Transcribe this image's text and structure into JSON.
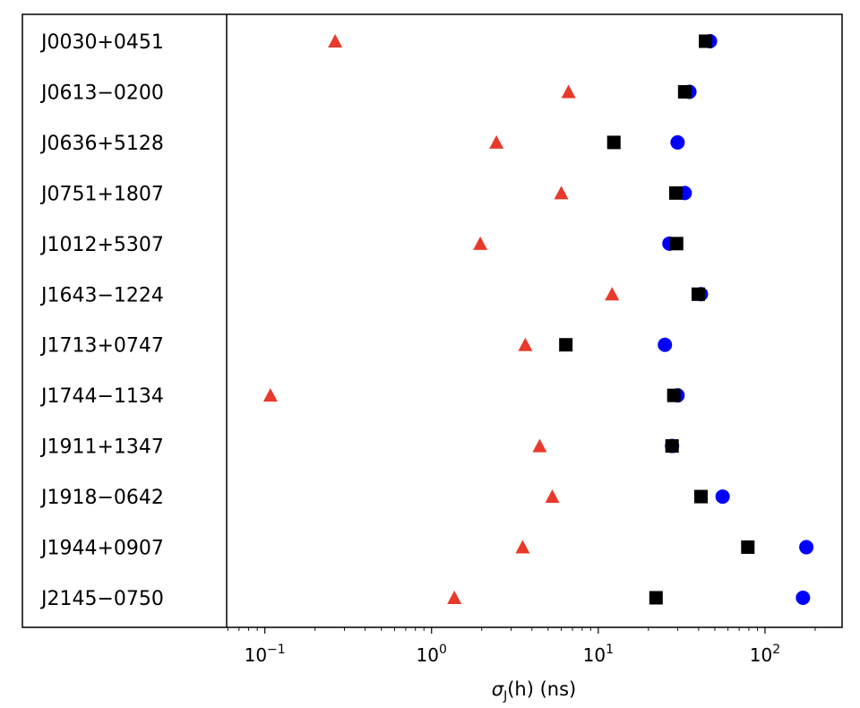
{
  "chart_data": {
    "type": "scatter",
    "title": "",
    "xlabel_main": "σ",
    "xlabel_sub": "J",
    "xlabel_rest": "(h) (ns)",
    "xscale": "log",
    "xlim": [
      0.059,
      290
    ],
    "xticks": [
      {
        "value": 0.1,
        "base": "10",
        "exp": "−1"
      },
      {
        "value": 1,
        "base": "10",
        "exp": "0"
      },
      {
        "value": 10,
        "base": "10",
        "exp": "1"
      },
      {
        "value": 100,
        "base": "10",
        "exp": "2"
      }
    ],
    "grid": false,
    "categories": [
      "J0030+0451",
      "J0613−0200",
      "J0636+5128",
      "J0751+1807",
      "J1012+5307",
      "J1643−1224",
      "J1713+0747",
      "J1744−1134",
      "J1911+1347",
      "J1918−0642",
      "J1944+0907",
      "J2145−0750"
    ],
    "series": [
      {
        "marker": "circle",
        "color": "#0000ff",
        "values": [
          46.8,
          35.2,
          29.9,
          33.0,
          26.7,
          41.3,
          25.1,
          29.9,
          27.7,
          55.7,
          177,
          169
        ]
      },
      {
        "marker": "square",
        "color": "#000000",
        "values": [
          44,
          33,
          12.4,
          29.2,
          29.5,
          39.8,
          6.39,
          28.4,
          27.7,
          41.3,
          78.9,
          22.2
        ]
      },
      {
        "marker": "triangle",
        "color": "#e8392a",
        "values": [
          0.264,
          6.63,
          2.45,
          6.0,
          1.96,
          12.1,
          3.65,
          0.108,
          4.45,
          5.3,
          3.52,
          1.37
        ]
      }
    ]
  }
}
